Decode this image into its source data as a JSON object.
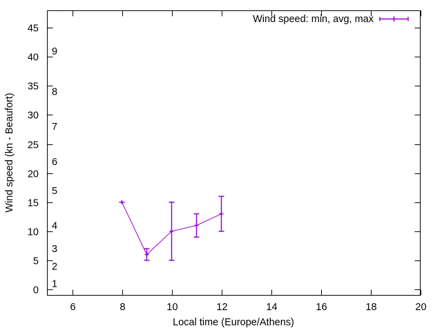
{
  "chart_data": {
    "type": "line",
    "title": "",
    "xlabel": "Local time (Europe/Athens)",
    "ylabel": "Wind speed (kn - Beaufort)",
    "xlim": [
      5,
      20
    ],
    "ylim": [
      -1,
      48
    ],
    "x_ticks": [
      6,
      8,
      10,
      12,
      14,
      16,
      18,
      20
    ],
    "y_ticks": [
      0,
      5,
      10,
      15,
      20,
      25,
      30,
      35,
      40,
      45
    ],
    "beaufort_labels": [
      {
        "label": "1",
        "y": 1
      },
      {
        "label": "2",
        "y": 4
      },
      {
        "label": "3",
        "y": 7
      },
      {
        "label": "4",
        "y": 11
      },
      {
        "label": "5",
        "y": 17
      },
      {
        "label": "6",
        "y": 22
      },
      {
        "label": "7",
        "y": 28
      },
      {
        "label": "8",
        "y": 34
      },
      {
        "label": "9",
        "y": 41
      }
    ],
    "grid": false,
    "legend_position": "top-right",
    "series": [
      {
        "name": "Wind speed: min, avg, max",
        "color": "#9400d3",
        "x": [
          8,
          9,
          10,
          11,
          12
        ],
        "avg": [
          15,
          6,
          10,
          11,
          13
        ],
        "min": [
          15,
          5,
          5,
          9,
          10
        ],
        "max": [
          15,
          7,
          15,
          13,
          16
        ]
      }
    ]
  }
}
